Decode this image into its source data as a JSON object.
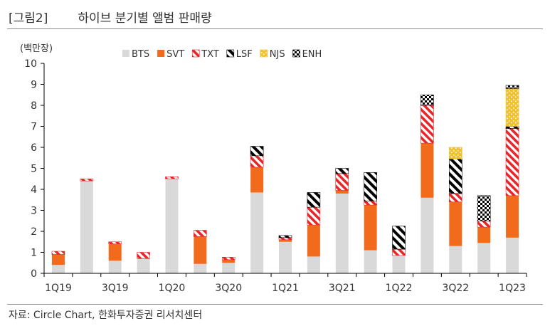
{
  "figure": {
    "number": "[그림2]",
    "title": "하이브 분기별 앨범 판매량",
    "source": "자료: Circle Chart, 한화투자증권 리서치센터"
  },
  "chart_data": {
    "type": "bar",
    "stacked": true,
    "ylabel": "(백만장)",
    "ylim": [
      0,
      10
    ],
    "yticks": [
      0,
      1,
      2,
      3,
      4,
      5,
      6,
      7,
      8,
      9,
      10
    ],
    "grid": false,
    "legend_position": "top",
    "categories": [
      "1Q19",
      "2Q19",
      "3Q19",
      "4Q19",
      "1Q20",
      "2Q20",
      "3Q20",
      "4Q20",
      "1Q21",
      "2Q21",
      "3Q21",
      "4Q21",
      "1Q22",
      "2Q22",
      "3Q22",
      "4Q22",
      "1Q23"
    ],
    "xtick_labels": [
      "1Q19",
      "",
      "3Q19",
      "",
      "1Q20",
      "",
      "3Q20",
      "",
      "1Q21",
      "",
      "3Q21",
      "",
      "1Q22",
      "",
      "3Q22",
      "",
      "1Q23"
    ],
    "series": [
      {
        "name": "BTS",
        "color": "#d9d9d9",
        "pattern": "solid",
        "values": [
          0.4,
          4.4,
          0.6,
          0.7,
          4.5,
          0.45,
          0.5,
          3.85,
          1.5,
          0.8,
          3.8,
          1.1,
          0.85,
          3.6,
          1.3,
          1.45,
          1.7
        ]
      },
      {
        "name": "SVT",
        "color": "#f26b1d",
        "pattern": "solid",
        "values": [
          0.5,
          0.0,
          0.8,
          0.0,
          0.0,
          1.3,
          0.15,
          1.2,
          0.1,
          1.5,
          0.15,
          2.15,
          0.0,
          2.6,
          2.1,
          0.75,
          2.0
        ]
      },
      {
        "name": "TXT",
        "color": "#e8262a",
        "pattern": "diagonal",
        "values": [
          0.15,
          0.1,
          0.1,
          0.3,
          0.1,
          0.3,
          0.12,
          0.55,
          0.1,
          0.85,
          0.8,
          0.2,
          0.3,
          1.8,
          0.4,
          0.3,
          3.2
        ]
      },
      {
        "name": "LSF",
        "color": "#000000",
        "pattern": "wide-diagonal",
        "values": [
          0.0,
          0.0,
          0.0,
          0.0,
          0.0,
          0.0,
          0.0,
          0.45,
          0.1,
          0.7,
          0.25,
          1.35,
          1.1,
          0.0,
          1.65,
          0.0,
          0.1
        ]
      },
      {
        "name": "NJS",
        "color": "#f2c12e",
        "pattern": "dots",
        "values": [
          0.0,
          0.0,
          0.0,
          0.0,
          0.0,
          0.0,
          0.0,
          0.0,
          0.0,
          0.0,
          0.0,
          0.0,
          0.0,
          0.0,
          0.55,
          0.0,
          1.8
        ]
      },
      {
        "name": "ENH",
        "color": "#000000",
        "pattern": "checker",
        "values": [
          0.0,
          0.0,
          0.0,
          0.0,
          0.0,
          0.0,
          0.0,
          0.0,
          0.0,
          0.0,
          0.0,
          0.0,
          0.0,
          0.5,
          0.0,
          1.2,
          0.15
        ]
      }
    ]
  }
}
